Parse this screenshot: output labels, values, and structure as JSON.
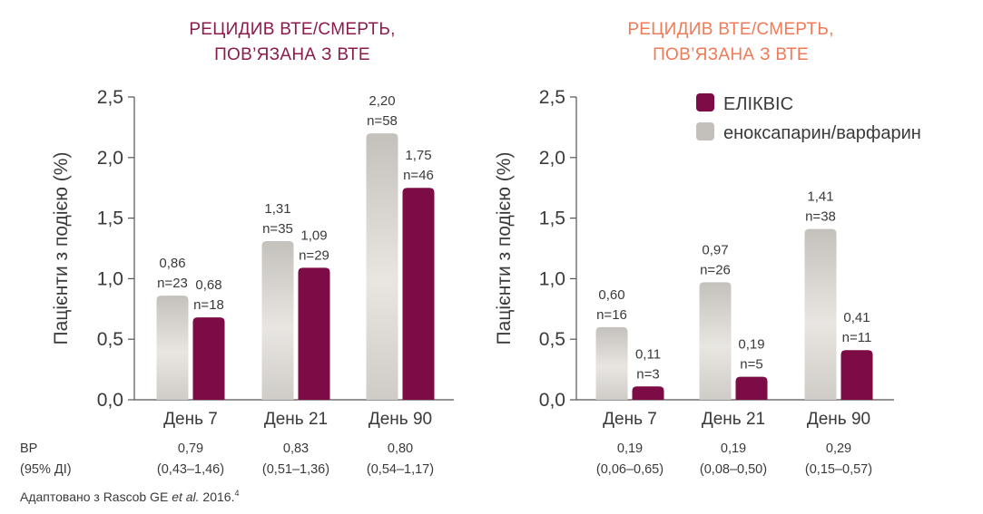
{
  "colors": {
    "eliquis": "#7d0b45",
    "comparator_light": "#e6e3df",
    "comparator_dark": "#c3c0bb",
    "title_left": "#8b1a4d",
    "title_right": "#f07a55",
    "axis": "#555555",
    "text": "#3a3a3a"
  },
  "legend": {
    "eliquis": "ЕЛІКВІС",
    "comparator": "еноксапарин/варфарин"
  },
  "hr_labels": [
    "ВР",
    "(95% ДІ)"
  ],
  "source": {
    "prefix": "Адаптовано з Rascob GE ",
    "italic": "et al.",
    "suffix": " 2016.",
    "sup": "4"
  },
  "chart_data": [
    {
      "type": "bar",
      "title": [
        "РЕЦИДИВ ВТЕ/СМЕРТЬ,",
        "ПОВ’ЯЗАНА З ВТЕ"
      ],
      "ylabel": "Пацієнти з подією (%)",
      "ylim": [
        0,
        2.5
      ],
      "yticks": [
        "0,0",
        "0,5",
        "1,0",
        "1,5",
        "2,0",
        "2,5"
      ],
      "categories": [
        "День 7",
        "День 21",
        "День 90"
      ],
      "series": [
        {
          "name": "еноксапарин/варфарин",
          "values": [
            0.86,
            1.31,
            2.2
          ],
          "labels": [
            "0,86",
            "1,31",
            "2,20"
          ],
          "n": [
            "n=23",
            "n=35",
            "n=58"
          ]
        },
        {
          "name": "ЕЛІКВІС",
          "values": [
            0.68,
            1.09,
            1.75
          ],
          "labels": [
            "0,68",
            "1,09",
            "1,75"
          ],
          "n": [
            "n=18",
            "n=29",
            "n=46"
          ]
        }
      ],
      "hr": [
        "0,79",
        "0,83",
        "0,80"
      ],
      "ci": [
        "(0,43–1,46)",
        "(0,51–1,36)",
        "(0,54–1,17)"
      ],
      "grid": false
    },
    {
      "type": "bar",
      "title": [
        "РЕЦИДИВ ВТЕ/СМЕРТЬ,",
        "ПОВ’ЯЗАНА З ВТЕ"
      ],
      "ylabel": "Пацієнти з подією (%)",
      "ylim": [
        0,
        2.5
      ],
      "yticks": [
        "0,0",
        "0,5",
        "1,0",
        "1,5",
        "2,0",
        "2,5"
      ],
      "categories": [
        "День 7",
        "День 21",
        "День 90"
      ],
      "series": [
        {
          "name": "еноксапарин/варфарин",
          "values": [
            0.6,
            0.97,
            1.41
          ],
          "labels": [
            "0,60",
            "0,97",
            "1,41"
          ],
          "n": [
            "n=16",
            "n=26",
            "n=38"
          ]
        },
        {
          "name": "ЕЛІКВІС",
          "values": [
            0.11,
            0.19,
            0.41
          ],
          "labels": [
            "0,11",
            "0,19",
            "0,41"
          ],
          "n": [
            "n=3",
            "n=5",
            "n=11"
          ]
        }
      ],
      "hr": [
        "0,19",
        "0,19",
        "0,29"
      ],
      "ci": [
        "(0,06–0,65)",
        "(0,08–0,50)",
        "(0,15–0,57)"
      ],
      "grid": false,
      "legend_position": "top-right"
    }
  ]
}
